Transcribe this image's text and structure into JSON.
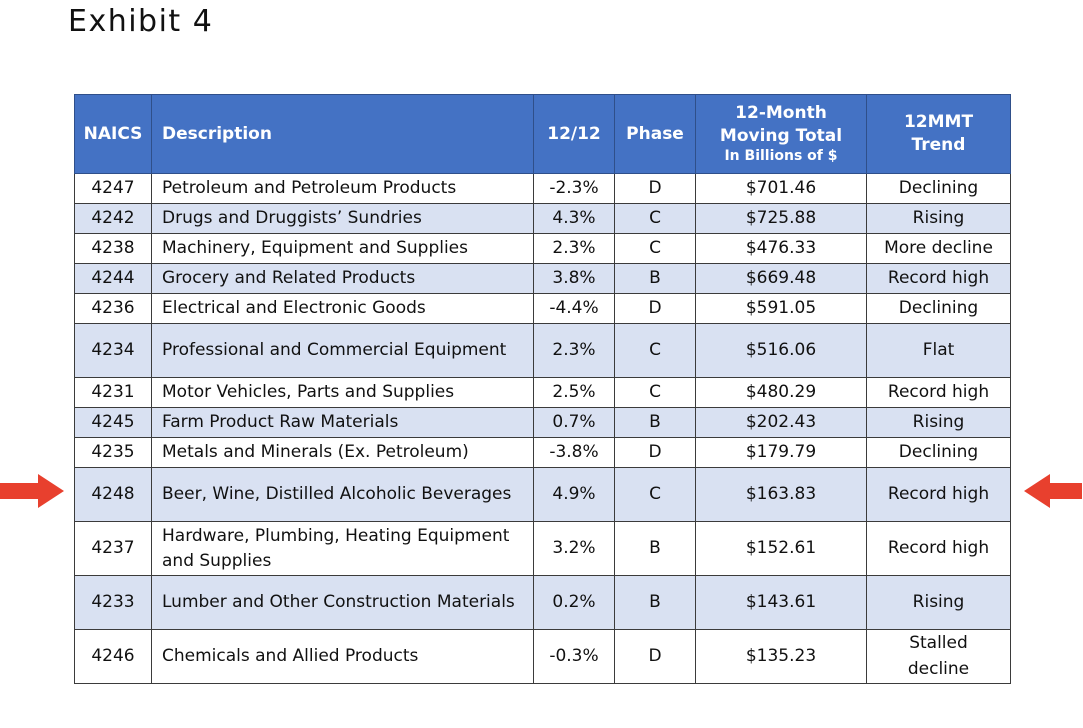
{
  "title": "Exhibit 4",
  "headers": {
    "naics": "NAICS",
    "description": "Description",
    "yoy": "12/12",
    "phase": "Phase",
    "mmt_line1": "12-Month",
    "mmt_line2": "Moving Total",
    "mmt_line3": "In Billions of $",
    "trend_line1": "12MMT",
    "trend_line2": "Trend"
  },
  "rows": [
    {
      "naics": "4247",
      "description": "Petroleum and Petroleum Products",
      "yoy": "-2.3%",
      "phase": "D",
      "mmt": "$701.46",
      "trend": "Declining"
    },
    {
      "naics": "4242",
      "description": "Drugs and Druggists’ Sundries",
      "yoy": "4.3%",
      "phase": "C",
      "mmt": "$725.88",
      "trend": "Rising"
    },
    {
      "naics": "4238",
      "description": "Machinery, Equipment and Supplies",
      "yoy": "2.3%",
      "phase": "C",
      "mmt": "$476.33",
      "trend": "More decline"
    },
    {
      "naics": "4244",
      "description": "Grocery and Related Products",
      "yoy": "3.8%",
      "phase": "B",
      "mmt": "$669.48",
      "trend": "Record high"
    },
    {
      "naics": "4236",
      "description": "Electrical and Electronic Goods",
      "yoy": "-4.4%",
      "phase": "D",
      "mmt": "$591.05",
      "trend": "Declining"
    },
    {
      "naics": "4234",
      "description": "Professional and Commercial Equipment",
      "yoy": "2.3%",
      "phase": "C",
      "mmt": "$516.06",
      "trend": "Flat"
    },
    {
      "naics": "4231",
      "description": "Motor Vehicles, Parts and Supplies",
      "yoy": "2.5%",
      "phase": "C",
      "mmt": "$480.29",
      "trend": "Record high"
    },
    {
      "naics": "4245",
      "description": "Farm Product Raw Materials",
      "yoy": "0.7%",
      "phase": "B",
      "mmt": "$202.43",
      "trend": "Rising"
    },
    {
      "naics": "4235",
      "description": "Metals and Minerals (Ex. Petroleum)",
      "yoy": "-3.8%",
      "phase": "D",
      "mmt": "$179.79",
      "trend": "Declining"
    },
    {
      "naics": "4248",
      "description": "Beer, Wine, Distilled Alcoholic Beverages",
      "yoy": "4.9%",
      "phase": "C",
      "mmt": "$163.83",
      "trend": "Record high"
    },
    {
      "naics": "4237",
      "description": "Hardware, Plumbing, Heating Equipment and Supplies",
      "yoy": "3.2%",
      "phase": "B",
      "mmt": "$152.61",
      "trend": "Record high"
    },
    {
      "naics": "4233",
      "description": "Lumber and Other Construction Materials",
      "yoy": "0.2%",
      "phase": "B",
      "mmt": "$143.61",
      "trend": "Rising"
    },
    {
      "naics": "4246",
      "description": "Chemicals and Allied Products",
      "yoy": "-0.3%",
      "phase": "D",
      "mmt": "$135.23",
      "trend": "Stalled decline"
    }
  ],
  "colors": {
    "header_bg": "#4472c4",
    "band_bg": "#d9e1f2",
    "arrow": "#e8402e"
  },
  "highlighted_row_naics": "4248"
}
